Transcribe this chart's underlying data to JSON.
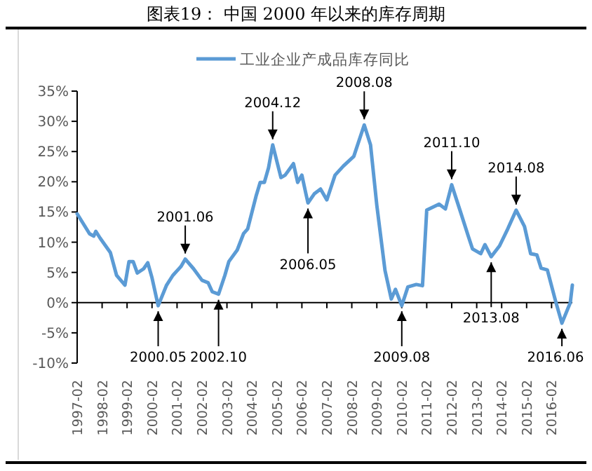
{
  "chart_data": {
    "type": "line",
    "title": "图表19：  中国 2000 年以来的库存周期",
    "legend": "top",
    "marker": "none",
    "line_style": "solid",
    "xlim": [
      "1997-02",
      "2016-12"
    ],
    "xticks": [
      "1997-02",
      "1998-02",
      "1999-02",
      "2000-02",
      "2001-02",
      "2002-02",
      "2003-02",
      "2004-02",
      "2005-02",
      "2006-02",
      "2007-02",
      "2008-02",
      "2009-02",
      "2010-02",
      "2011-02",
      "2012-02",
      "2013-02",
      "2014-02",
      "2015-02",
      "2016-02"
    ],
    "ylim": [
      -10,
      35
    ],
    "yticks": [
      {
        "value": -10,
        "label": "-10%"
      },
      {
        "value": -5,
        "label": "-5%"
      },
      {
        "value": 0,
        "label": "0%"
      },
      {
        "value": 5,
        "label": "5%"
      },
      {
        "value": 10,
        "label": "10%"
      },
      {
        "value": 15,
        "label": "15%"
      },
      {
        "value": 20,
        "label": "20%"
      },
      {
        "value": 25,
        "label": "25%"
      },
      {
        "value": 30,
        "label": "30%"
      },
      {
        "value": 35,
        "label": "35%"
      }
    ],
    "x": [
      "1997-02",
      "1997-08",
      "1997-10",
      "1997-11",
      "1998-01",
      "1998-06",
      "1998-09",
      "1999-01",
      "1999-03",
      "1999-05",
      "1999-07",
      "1999-10",
      "1999-12",
      "2000-02",
      "2000-05",
      "2000-09",
      "2000-12",
      "2001-04",
      "2001-06",
      "2001-10",
      "2002-02",
      "2002-05",
      "2002-07",
      "2002-10",
      "2003-01",
      "2003-03",
      "2003-07",
      "2003-10",
      "2003-12",
      "2004-04",
      "2004-06",
      "2004-08",
      "2004-10",
      "2004-12",
      "2005-04",
      "2005-06",
      "2005-10",
      "2005-12",
      "2006-02",
      "2006-04",
      "2006-05",
      "2006-08",
      "2006-11",
      "2007-02",
      "2007-06",
      "2007-10",
      "2008-03",
      "2008-08",
      "2008-11",
      "2009-02",
      "2009-06",
      "2009-09",
      "2009-11",
      "2010-02",
      "2010-05",
      "2010-09",
      "2010-12",
      "2011-02",
      "2011-08",
      "2011-11",
      "2012-02",
      "2012-06",
      "2012-10",
      "2012-12",
      "2013-04",
      "2013-06",
      "2013-09",
      "2014-01",
      "2014-05",
      "2014-09",
      "2015-01",
      "2015-04",
      "2015-07",
      "2015-09",
      "2015-12",
      "2016-04",
      "2016-07",
      "2016-11",
      "2016-12"
    ],
    "series": [
      {
        "name": "工业企业产成品库存同比",
        "color": "#5b9bd5",
        "values": [
          14.7,
          11.4,
          11.0,
          11.8,
          10.7,
          8.3,
          4.5,
          2.9,
          6.8,
          6.8,
          4.9,
          5.6,
          6.6,
          4.1,
          -0.5,
          2.9,
          4.5,
          6.0,
          7.2,
          5.6,
          3.7,
          3.3,
          1.8,
          1.4,
          4.5,
          6.8,
          8.7,
          11.4,
          12.2,
          17.6,
          19.9,
          19.9,
          22.3,
          26.1,
          20.7,
          21.1,
          23.0,
          19.9,
          21.1,
          18.0,
          16.5,
          18.0,
          18.8,
          17.0,
          21.1,
          22.6,
          24.2,
          29.4,
          26.1,
          16.1,
          5.3,
          0.6,
          2.2,
          -0.5,
          2.6,
          3.0,
          2.8,
          15.3,
          16.3,
          15.5,
          19.5,
          15.3,
          11.0,
          8.9,
          8.1,
          9.6,
          7.6,
          9.4,
          12.2,
          15.3,
          12.6,
          8.1,
          7.9,
          5.7,
          5.4,
          0.2,
          -3.4,
          0.0,
          2.9
        ]
      }
    ],
    "annotations": [
      {
        "text": "2001.06",
        "x": "2001-06",
        "y": 7.2
      },
      {
        "text": "2004.12",
        "x": "2004-12",
        "y": 26.1
      },
      {
        "text": "2008.08",
        "x": "2008-08",
        "y": 29.4
      },
      {
        "text": "2011.10",
        "x": "2012-02",
        "y": 19.5
      },
      {
        "text": "2014.08",
        "x": "2014-09",
        "y": 15.3
      },
      {
        "text": "2000.05",
        "x": "2000-05",
        "y": -0.5
      },
      {
        "text": "2002.10",
        "x": "2002-10",
        "y": 1.4
      },
      {
        "text": "2006.05",
        "x": "2006-05",
        "y": 16.5
      },
      {
        "text": "2009.08",
        "x": "2010-02",
        "y": -0.5
      },
      {
        "text": "2013.08",
        "x": "2013-09",
        "y": 7.6
      },
      {
        "text": "2016.06",
        "x": "2016-07",
        "y": -3.4
      }
    ]
  }
}
